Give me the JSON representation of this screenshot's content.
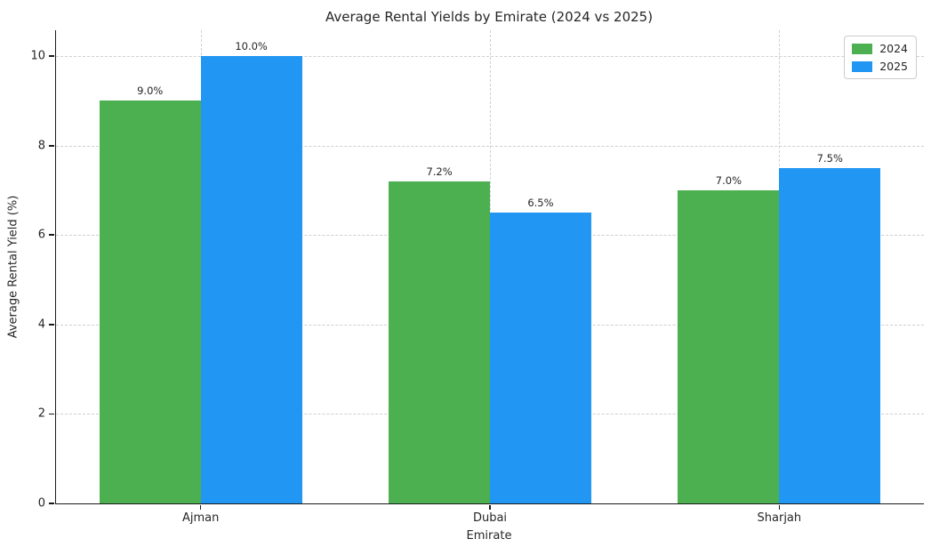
{
  "chart_data": {
    "type": "bar",
    "title": "Average Rental Yields by Emirate (2024 vs 2025)",
    "xlabel": "Emirate",
    "ylabel": "Average Rental Yield (%)",
    "categories": [
      "Ajman",
      "Dubai",
      "Sharjah"
    ],
    "series": [
      {
        "name": "2024",
        "color": "#4CAF50",
        "values": [
          9.0,
          7.2,
          7.0
        ],
        "value_labels": [
          "9.0%",
          "7.2%",
          "7.0%"
        ]
      },
      {
        "name": "2025",
        "color": "#2196F3",
        "values": [
          10.0,
          6.5,
          7.5
        ],
        "value_labels": [
          "10.0%",
          "6.5%",
          "7.5%"
        ]
      }
    ],
    "yticks": [
      "0",
      "2",
      "4",
      "6",
      "8",
      "10"
    ],
    "ylim": [
      0,
      10.58
    ],
    "bar_width_data_units": 0.35,
    "x_range_data_units": 3,
    "grid": "dashed",
    "gridline_color": "#cfcfcf",
    "axis_color": "#1a1a1a",
    "text_color": "#262626",
    "legend": {
      "position": "upper-right",
      "entries": [
        "2024",
        "2025"
      ]
    }
  }
}
